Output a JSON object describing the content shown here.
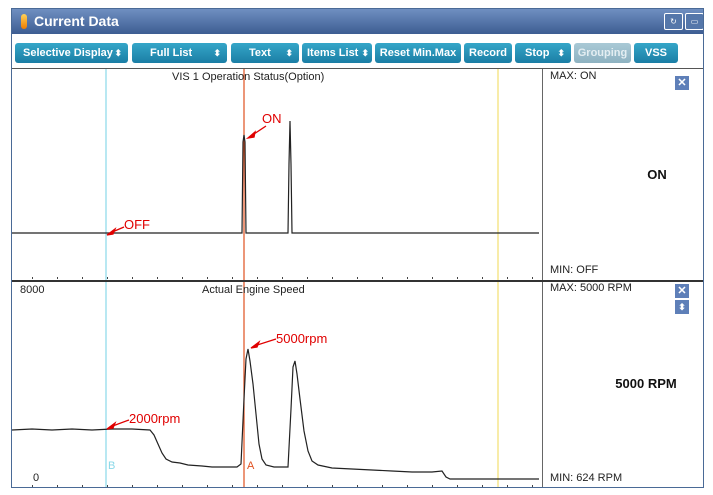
{
  "window": {
    "title": "Current Data",
    "icon": "status-light-icon"
  },
  "toolbar": {
    "selective_display": "Selective Display",
    "full_list": "Full List",
    "text": "Text",
    "items_list": "Items List",
    "reset_min_max": "Reset Min.Max",
    "record": "Record",
    "stop": "Stop",
    "grouping": "Grouping",
    "vss": "VSS"
  },
  "graph1": {
    "title": "VIS 1 Operation Status(Option)",
    "max": "MAX: ON",
    "min": "MIN: OFF",
    "current": "ON",
    "annotations": {
      "on": "ON",
      "off": "OFF"
    }
  },
  "graph2": {
    "title": "Actual Engine Speed",
    "y_top": "8000",
    "y_bottom": "0",
    "max": "MAX:  5000 RPM",
    "min": "MIN:   624 RPM",
    "current": "5000 RPM",
    "annotations": {
      "peak": "5000rpm",
      "idle": "2000rpm"
    },
    "cursor_a": "A",
    "cursor_b": "B"
  },
  "colors": {
    "accent": "#1b7ea5",
    "annotation": "#e00000",
    "cursor_a": "#e05020",
    "cursor_b": "#8ad8e8",
    "cursor_y": "#f4e070"
  }
}
